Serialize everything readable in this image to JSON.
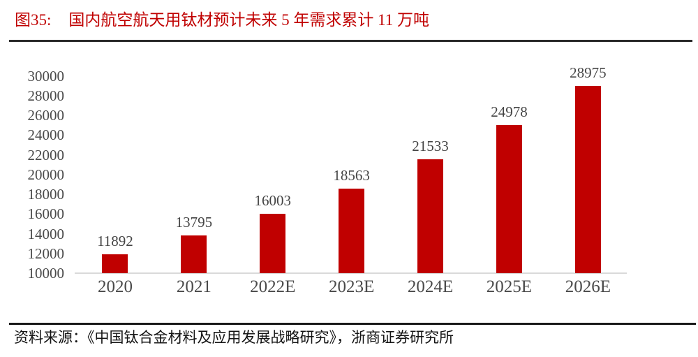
{
  "header": {
    "figure_label": "图35:",
    "title": "国内航空航天用钛材预计未来 5 年需求累计 11 万吨"
  },
  "chart_data": {
    "type": "bar",
    "title": "国内航空航天用钛材预计未来 5 年需求累计 11 万吨",
    "categories": [
      "2020",
      "2021",
      "2022E",
      "2023E",
      "2024E",
      "2025E",
      "2026E"
    ],
    "values": [
      11892,
      13795,
      16003,
      18563,
      21533,
      24978,
      28975
    ],
    "data_labels": [
      "11892",
      "13795",
      "16003",
      "18563",
      "21533",
      "24978",
      "28975"
    ],
    "y_ticks": [
      10000,
      12000,
      14000,
      16000,
      18000,
      20000,
      22000,
      24000,
      26000,
      28000,
      30000
    ],
    "ylim": [
      10000,
      30000
    ],
    "xlabel": "",
    "ylabel": "",
    "grid": false,
    "legend": false,
    "bar_color": "#c00000",
    "axis_line_color": "#d9d9d9",
    "axis_text_color": "#4a4a4a",
    "title_color": "#c00000"
  },
  "footer": {
    "source_label": "资料来源：",
    "source_text": "《中国钛合金材料及应用发展战略研究》，浙商证券研究所"
  }
}
